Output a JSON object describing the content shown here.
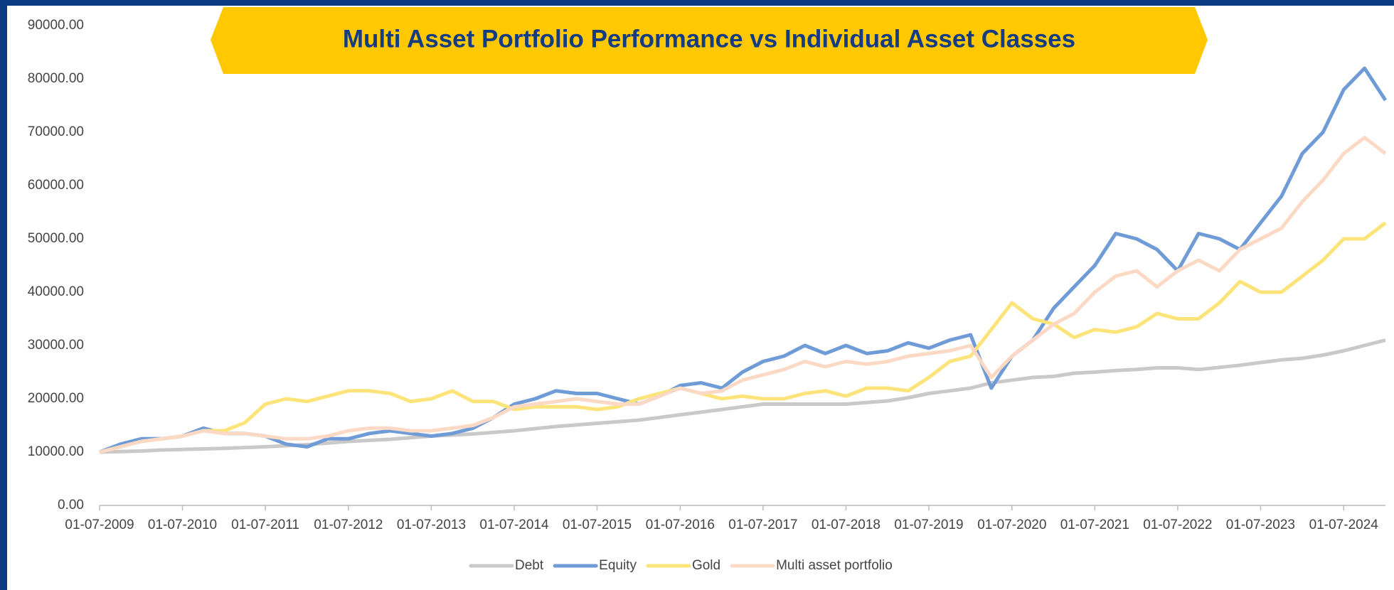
{
  "chart_data": {
    "type": "line",
    "title": "Multi Asset Portfolio Performance vs Individual Asset Classes",
    "x": [
      "01-07-2009",
      "01-10-2009",
      "01-01-2010",
      "01-04-2010",
      "01-07-2010",
      "01-10-2010",
      "01-01-2011",
      "01-04-2011",
      "01-07-2011",
      "01-10-2011",
      "01-01-2012",
      "01-04-2012",
      "01-07-2012",
      "01-10-2012",
      "01-01-2013",
      "01-04-2013",
      "01-07-2013",
      "01-10-2013",
      "01-01-2014",
      "01-04-2014",
      "01-07-2014",
      "01-10-2014",
      "01-01-2015",
      "01-04-2015",
      "01-07-2015",
      "01-10-2015",
      "01-01-2016",
      "01-04-2016",
      "01-07-2016",
      "01-10-2016",
      "01-01-2017",
      "01-04-2017",
      "01-07-2017",
      "01-10-2017",
      "01-01-2018",
      "01-04-2018",
      "01-07-2018",
      "01-10-2018",
      "01-01-2019",
      "01-04-2019",
      "01-07-2019",
      "01-10-2019",
      "01-01-2020",
      "01-04-2020",
      "01-07-2020",
      "01-10-2020",
      "01-01-2021",
      "01-04-2021",
      "01-07-2021",
      "01-10-2021",
      "01-01-2022",
      "01-04-2022",
      "01-07-2022",
      "01-10-2022",
      "01-01-2023",
      "01-04-2023",
      "01-07-2023",
      "01-10-2023",
      "01-01-2024",
      "01-04-2024",
      "01-07-2024",
      "01-10-2024",
      "01-01-2025"
    ],
    "series": [
      {
        "name": "Debt",
        "color": "#c9c9c9",
        "values": [
          10000,
          10100,
          10200,
          10400,
          10500,
          10600,
          10700,
          10850,
          11000,
          11200,
          11400,
          11700,
          12000,
          12200,
          12400,
          12700,
          13000,
          13200,
          13400,
          13700,
          14000,
          14400,
          14800,
          15100,
          15400,
          15700,
          16000,
          16500,
          17000,
          17500,
          18000,
          18500,
          19000,
          19000,
          19000,
          19000,
          19000,
          19300,
          19600,
          20200,
          21000,
          21500,
          22000,
          23000,
          23500,
          24000,
          24200,
          24800,
          25000,
          25300,
          25500,
          25800,
          25800,
          25500,
          25900,
          26300,
          26800,
          27300,
          27600,
          28200,
          29000,
          30000,
          31000
        ]
      },
      {
        "name": "Equity",
        "color": "#6f9bd6",
        "values": [
          10000,
          11500,
          12500,
          12500,
          13000,
          14500,
          13500,
          13500,
          13000,
          11500,
          11000,
          12500,
          12500,
          13500,
          14000,
          13500,
          13000,
          13500,
          14500,
          16500,
          19000,
          20000,
          21500,
          21000,
          21000,
          20000,
          19000,
          20500,
          22500,
          23000,
          22000,
          25000,
          27000,
          28000,
          30000,
          28500,
          30000,
          28500,
          29000,
          30500,
          29500,
          31000,
          32000,
          22000,
          28000,
          31000,
          37000,
          41000,
          45000,
          51000,
          50000,
          48000,
          44000,
          51000,
          50000,
          48000,
          53000,
          58000,
          66000,
          70000,
          78000,
          82000,
          76000
        ]
      },
      {
        "name": "Gold",
        "color": "#fde47a",
        "values": [
          10000,
          11000,
          12000,
          12500,
          13000,
          14000,
          14000,
          15500,
          19000,
          20000,
          19500,
          20500,
          21500,
          21500,
          21000,
          19500,
          20000,
          21500,
          19500,
          19500,
          18000,
          18500,
          18500,
          18500,
          18000,
          18500,
          20000,
          21000,
          22000,
          21000,
          20000,
          20500,
          20000,
          20000,
          21000,
          21500,
          20500,
          22000,
          22000,
          21500,
          24000,
          27000,
          28000,
          33000,
          38000,
          35000,
          34000,
          31500,
          33000,
          32500,
          33500,
          36000,
          35000,
          35000,
          38000,
          42000,
          40000,
          40000,
          43000,
          46000,
          50000,
          50000,
          53000
        ]
      },
      {
        "name": "Multi asset portfolio",
        "color": "#fbd9c4",
        "values": [
          10000,
          11000,
          12000,
          12500,
          13000,
          14000,
          13500,
          13500,
          13000,
          12500,
          12500,
          13000,
          14000,
          14500,
          14500,
          14000,
          14000,
          14500,
          15000,
          16500,
          18500,
          19000,
          19500,
          20000,
          19500,
          19000,
          19000,
          20500,
          22000,
          21000,
          21500,
          23500,
          24500,
          25500,
          27000,
          26000,
          27000,
          26500,
          27000,
          28000,
          28500,
          29000,
          30000,
          24000,
          28000,
          31000,
          34000,
          36000,
          40000,
          43000,
          44000,
          41000,
          44000,
          46000,
          44000,
          48000,
          50000,
          52000,
          57000,
          61000,
          66000,
          69000,
          66000
        ]
      }
    ],
    "xlim": [
      "01-07-2009",
      "01-01-2025"
    ],
    "xticks": [
      "01-07-2009",
      "01-07-2010",
      "01-07-2011",
      "01-07-2012",
      "01-07-2013",
      "01-07-2014",
      "01-07-2015",
      "01-07-2016",
      "01-07-2017",
      "01-07-2018",
      "01-07-2019",
      "01-07-2020",
      "01-07-2021",
      "01-07-2022",
      "01-07-2023",
      "01-07-2024"
    ],
    "ylim": [
      0,
      90000
    ],
    "yticks": [
      {
        "value": 0,
        "label": "0.00"
      },
      {
        "value": 10000,
        "label": "10000.00"
      },
      {
        "value": 20000,
        "label": "20000.00"
      },
      {
        "value": 30000,
        "label": "30000.00"
      },
      {
        "value": 40000,
        "label": "40000.00"
      },
      {
        "value": 50000,
        "label": "50000.00"
      },
      {
        "value": 60000,
        "label": "60000.00"
      },
      {
        "value": 70000,
        "label": "70000.00"
      },
      {
        "value": 80000,
        "label": "80000.00"
      },
      {
        "value": 90000,
        "label": "90000.00"
      }
    ],
    "grid": false,
    "legend": "bottom"
  }
}
